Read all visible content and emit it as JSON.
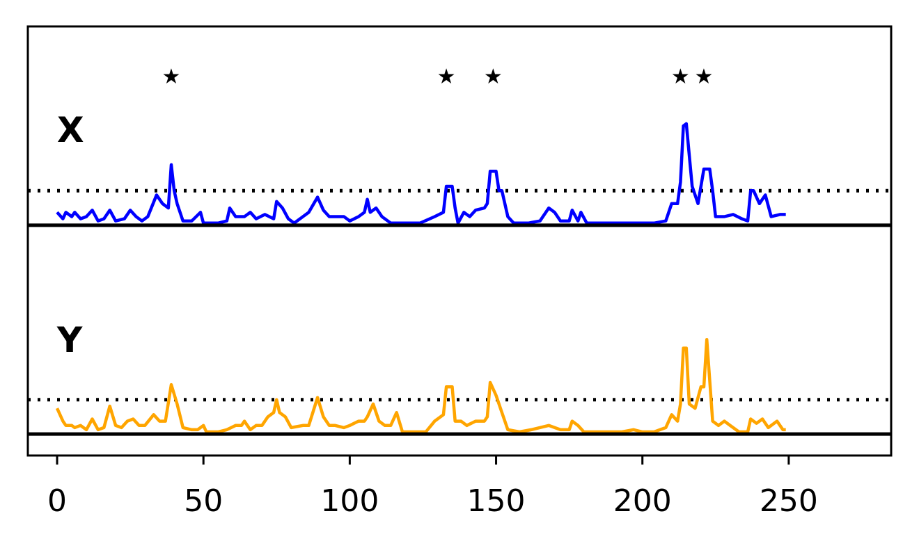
{
  "chart_data": {
    "type": "line",
    "xlim": [
      -10,
      285
    ],
    "xticks": [
      {
        "value": 0,
        "label": "0"
      },
      {
        "value": 50,
        "label": "50"
      },
      {
        "value": 100,
        "label": "100"
      },
      {
        "value": 150,
        "label": "150"
      },
      {
        "value": 200,
        "label": "200"
      },
      {
        "value": 250,
        "label": "250"
      }
    ],
    "grid": false,
    "star_marker": "★",
    "stars_x": [
      39,
      133,
      149,
      213,
      221
    ],
    "panels": [
      {
        "label": "X",
        "color": "#0000ff",
        "ylim": [
          -0.5,
          4.6
        ],
        "threshold": 0.8,
        "baseline": 0,
        "series_keys": [
          [
            0,
            0.3
          ],
          [
            2,
            0.15
          ],
          [
            3,
            0.3
          ],
          [
            5,
            0.2
          ],
          [
            6,
            0.3
          ],
          [
            8,
            0.15
          ],
          [
            10,
            0.2
          ],
          [
            12,
            0.35
          ],
          [
            14,
            0.1
          ],
          [
            16,
            0.15
          ],
          [
            18,
            0.35
          ],
          [
            20,
            0.1
          ],
          [
            23,
            0.15
          ],
          [
            25,
            0.35
          ],
          [
            27,
            0.2
          ],
          [
            29,
            0.1
          ],
          [
            31,
            0.2
          ],
          [
            34,
            0.7
          ],
          [
            36,
            0.5
          ],
          [
            38,
            0.4
          ],
          [
            39,
            1.4
          ],
          [
            40,
            0.8
          ],
          [
            41,
            0.5
          ],
          [
            43,
            0.1
          ],
          [
            46,
            0.1
          ],
          [
            49,
            0.3
          ],
          [
            50,
            0.05
          ],
          [
            55,
            0.05
          ],
          [
            58,
            0.1
          ],
          [
            59,
            0.4
          ],
          [
            61,
            0.2
          ],
          [
            64,
            0.2
          ],
          [
            66,
            0.3
          ],
          [
            68,
            0.15
          ],
          [
            71,
            0.25
          ],
          [
            74,
            0.15
          ],
          [
            75,
            0.55
          ],
          [
            77,
            0.4
          ],
          [
            79,
            0.15
          ],
          [
            81,
            0.05
          ],
          [
            84,
            0.2
          ],
          [
            86,
            0.3
          ],
          [
            89,
            0.65
          ],
          [
            91,
            0.35
          ],
          [
            93,
            0.2
          ],
          [
            95,
            0.2
          ],
          [
            98,
            0.2
          ],
          [
            100,
            0.1
          ],
          [
            103,
            0.2
          ],
          [
            105,
            0.3
          ],
          [
            106,
            0.6
          ],
          [
            107,
            0.3
          ],
          [
            109,
            0.4
          ],
          [
            111,
            0.2
          ],
          [
            114,
            0.05
          ],
          [
            118,
            0.05
          ],
          [
            124,
            0.05
          ],
          [
            129,
            0.2
          ],
          [
            132,
            0.3
          ],
          [
            133,
            0.9
          ],
          [
            135,
            0.9
          ],
          [
            136,
            0.4
          ],
          [
            137,
            0.05
          ],
          [
            139,
            0.3
          ],
          [
            141,
            0.2
          ],
          [
            143,
            0.35
          ],
          [
            146,
            0.4
          ],
          [
            147,
            0.5
          ],
          [
            148,
            1.25
          ],
          [
            150,
            1.25
          ],
          [
            151,
            0.8
          ],
          [
            152,
            0.8
          ],
          [
            154,
            0.2
          ],
          [
            156,
            0.05
          ],
          [
            161,
            0.05
          ],
          [
            165,
            0.1
          ],
          [
            168,
            0.4
          ],
          [
            170,
            0.3
          ],
          [
            172,
            0.1
          ],
          [
            175,
            0.1
          ],
          [
            176,
            0.35
          ],
          [
            178,
            0.1
          ],
          [
            179,
            0.3
          ],
          [
            181,
            0.05
          ],
          [
            184,
            0.05
          ],
          [
            188,
            0.05
          ],
          [
            196,
            0.05
          ],
          [
            200,
            0.05
          ],
          [
            204,
            0.05
          ],
          [
            208,
            0.1
          ],
          [
            210,
            0.5
          ],
          [
            212,
            0.5
          ],
          [
            213,
            1.0
          ],
          [
            214,
            2.3
          ],
          [
            215,
            2.35
          ],
          [
            217,
            0.9
          ],
          [
            219,
            0.5
          ],
          [
            221,
            1.3
          ],
          [
            223,
            1.3
          ],
          [
            224,
            0.8
          ],
          [
            225,
            0.2
          ],
          [
            228,
            0.2
          ],
          [
            231,
            0.25
          ],
          [
            234,
            0.15
          ],
          [
            236,
            0.1
          ],
          [
            237,
            0.8
          ],
          [
            238,
            0.8
          ],
          [
            240,
            0.5
          ],
          [
            242,
            0.7
          ],
          [
            244,
            0.2
          ],
          [
            247,
            0.25
          ],
          [
            249,
            0.25
          ]
        ]
      },
      {
        "label": "Y",
        "color": "#ffa500",
        "ylim": [
          -0.5,
          4.6
        ],
        "threshold": 0.8,
        "baseline": 0,
        "series_keys": [
          [
            0,
            0.6
          ],
          [
            2,
            0.3
          ],
          [
            3,
            0.2
          ],
          [
            5,
            0.2
          ],
          [
            6,
            0.15
          ],
          [
            8,
            0.2
          ],
          [
            10,
            0.1
          ],
          [
            12,
            0.35
          ],
          [
            14,
            0.1
          ],
          [
            16,
            0.15
          ],
          [
            18,
            0.65
          ],
          [
            20,
            0.2
          ],
          [
            22,
            0.15
          ],
          [
            24,
            0.3
          ],
          [
            26,
            0.35
          ],
          [
            28,
            0.2
          ],
          [
            30,
            0.2
          ],
          [
            33,
            0.45
          ],
          [
            35,
            0.3
          ],
          [
            37,
            0.3
          ],
          [
            39,
            1.15
          ],
          [
            41,
            0.7
          ],
          [
            43,
            0.15
          ],
          [
            46,
            0.1
          ],
          [
            48,
            0.1
          ],
          [
            50,
            0.2
          ],
          [
            51,
            0.05
          ],
          [
            55,
            0.05
          ],
          [
            58,
            0.1
          ],
          [
            61,
            0.2
          ],
          [
            63,
            0.2
          ],
          [
            64,
            0.3
          ],
          [
            66,
            0.1
          ],
          [
            68,
            0.2
          ],
          [
            70,
            0.2
          ],
          [
            72,
            0.4
          ],
          [
            74,
            0.5
          ],
          [
            75,
            0.8
          ],
          [
            76,
            0.5
          ],
          [
            78,
            0.4
          ],
          [
            80,
            0.15
          ],
          [
            84,
            0.2
          ],
          [
            86,
            0.2
          ],
          [
            89,
            0.85
          ],
          [
            91,
            0.4
          ],
          [
            93,
            0.2
          ],
          [
            95,
            0.2
          ],
          [
            98,
            0.15
          ],
          [
            100,
            0.2
          ],
          [
            103,
            0.3
          ],
          [
            105,
            0.3
          ],
          [
            106,
            0.4
          ],
          [
            108,
            0.7
          ],
          [
            110,
            0.3
          ],
          [
            112,
            0.2
          ],
          [
            114,
            0.2
          ],
          [
            116,
            0.5
          ],
          [
            118,
            0.05
          ],
          [
            122,
            0.05
          ],
          [
            126,
            0.05
          ],
          [
            129,
            0.3
          ],
          [
            132,
            0.45
          ],
          [
            133,
            1.1
          ],
          [
            135,
            1.1
          ],
          [
            136,
            0.3
          ],
          [
            138,
            0.3
          ],
          [
            140,
            0.2
          ],
          [
            143,
            0.3
          ],
          [
            146,
            0.3
          ],
          [
            147,
            0.4
          ],
          [
            148,
            1.2
          ],
          [
            150,
            0.9
          ],
          [
            151,
            0.7
          ],
          [
            152,
            0.5
          ],
          [
            154,
            0.1
          ],
          [
            158,
            0.05
          ],
          [
            162,
            0.1
          ],
          [
            168,
            0.2
          ],
          [
            172,
            0.1
          ],
          [
            175,
            0.1
          ],
          [
            176,
            0.3
          ],
          [
            178,
            0.2
          ],
          [
            180,
            0.05
          ],
          [
            186,
            0.05
          ],
          [
            193,
            0.05
          ],
          [
            197,
            0.1
          ],
          [
            200,
            0.05
          ],
          [
            204,
            0.05
          ],
          [
            208,
            0.15
          ],
          [
            210,
            0.45
          ],
          [
            212,
            0.3
          ],
          [
            213,
            0.7
          ],
          [
            214,
            2.0
          ],
          [
            215,
            2.0
          ],
          [
            216,
            0.7
          ],
          [
            218,
            0.6
          ],
          [
            220,
            1.1
          ],
          [
            221,
            1.1
          ],
          [
            222,
            2.2
          ],
          [
            224,
            0.3
          ],
          [
            226,
            0.2
          ],
          [
            228,
            0.3
          ],
          [
            230,
            0.2
          ],
          [
            233,
            0.05
          ],
          [
            236,
            0.05
          ],
          [
            237,
            0.35
          ],
          [
            239,
            0.25
          ],
          [
            241,
            0.35
          ],
          [
            243,
            0.15
          ],
          [
            246,
            0.3
          ],
          [
            248,
            0.1
          ],
          [
            249,
            0.1
          ]
        ]
      }
    ]
  }
}
